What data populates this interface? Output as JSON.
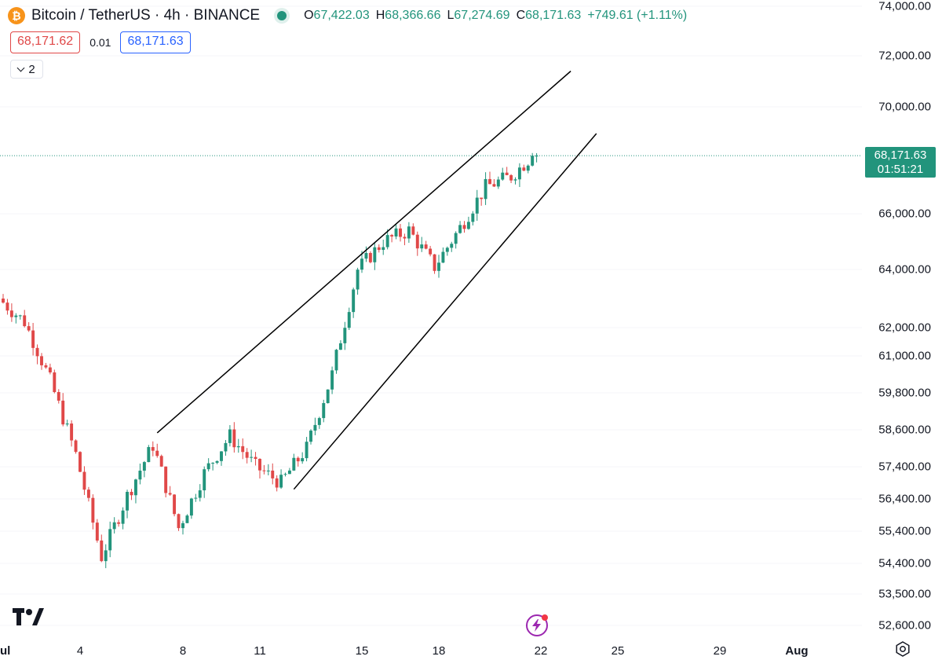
{
  "header": {
    "symbol_title": "Bitcoin / TetherUS · 4h · BINANCE",
    "coin_icon": "bitcoin-icon",
    "ohlc": {
      "o_label": "O",
      "o_value": "67,422.03",
      "h_label": "H",
      "h_value": "68,366.66",
      "l_label": "L",
      "l_value": "67,274.69",
      "c_label": "C",
      "c_value": "68,171.63",
      "change": "+749.61 (+1.11%)"
    }
  },
  "trade": {
    "sell_price": "68,171.62",
    "spread": "0.01",
    "buy_price": "68,171.63"
  },
  "indicators": {
    "collapsed_count": "2"
  },
  "last_price": {
    "price": "68,171.63",
    "countdown": "01:51:21"
  },
  "colors": {
    "up": "#22947c",
    "down": "#e04848",
    "sell": "#e04848",
    "buy": "#2962ff",
    "accent": "#22947c",
    "flash": "#9c27b0"
  },
  "price_axis": {
    "ticks": [
      "74,000.00",
      "72,000.00",
      "70,000.00",
      "66,000.00",
      "64,000.00",
      "62,000.00",
      "61,000.00",
      "59,800.00",
      "58,600.00",
      "57,400.00",
      "56,400.00",
      "55,400.00",
      "54,400.00",
      "53,500.00",
      "52,600.00"
    ],
    "scale": "log"
  },
  "time_axis": {
    "ticks": [
      {
        "label": "ul",
        "bold": true
      },
      {
        "label": "4",
        "bold": false
      },
      {
        "label": "8",
        "bold": false
      },
      {
        "label": "11",
        "bold": false
      },
      {
        "label": "15",
        "bold": false
      },
      {
        "label": "18",
        "bold": false
      },
      {
        "label": "22",
        "bold": false
      },
      {
        "label": "25",
        "bold": false
      },
      {
        "label": "29",
        "bold": false
      },
      {
        "label": "Aug",
        "bold": true
      }
    ]
  },
  "chart_data": {
    "type": "candlestick",
    "interval": "4h",
    "y_scale": "log",
    "anchors_price": [
      {
        "date": "2024-07-01",
        "price": 63000
      },
      {
        "date": "2024-07-02",
        "price": 62200
      },
      {
        "date": "2024-07-03",
        "price": 60200
      },
      {
        "date": "2024-07-04",
        "price": 57800
      },
      {
        "date": "2024-07-05",
        "price": 54600
      },
      {
        "date": "2024-07-06",
        "price": 56500
      },
      {
        "date": "2024-07-07",
        "price": 58100
      },
      {
        "date": "2024-07-08",
        "price": 55500
      },
      {
        "date": "2024-07-09",
        "price": 57200
      },
      {
        "date": "2024-07-10",
        "price": 58400
      },
      {
        "date": "2024-07-11",
        "price": 57400
      },
      {
        "date": "2024-07-12",
        "price": 56900
      },
      {
        "date": "2024-07-13",
        "price": 58000
      },
      {
        "date": "2024-07-14",
        "price": 60400
      },
      {
        "date": "2024-07-15",
        "price": 64000
      },
      {
        "date": "2024-07-16",
        "price": 65000
      },
      {
        "date": "2024-07-17",
        "price": 65400
      },
      {
        "date": "2024-07-18",
        "price": 64100
      },
      {
        "date": "2024-07-19",
        "price": 65500
      },
      {
        "date": "2024-07-20",
        "price": 67000
      },
      {
        "date": "2024-07-21",
        "price": 67400
      },
      {
        "date": "2024-07-21T20:00",
        "price": 68171.63
      }
    ],
    "last_price": 68171.63,
    "trendlines": [
      {
        "name": "upper-channel-line",
        "from": {
          "date": "2024-07-07",
          "price": 58500
        },
        "to": {
          "date": "2024-07-23T04:00",
          "price": 71400
        }
      },
      {
        "name": "lower-channel-line",
        "from": {
          "date": "2024-07-12T08:00",
          "price": 56700
        },
        "to": {
          "date": "2024-07-24T04:00",
          "price": 69000
        }
      }
    ]
  }
}
